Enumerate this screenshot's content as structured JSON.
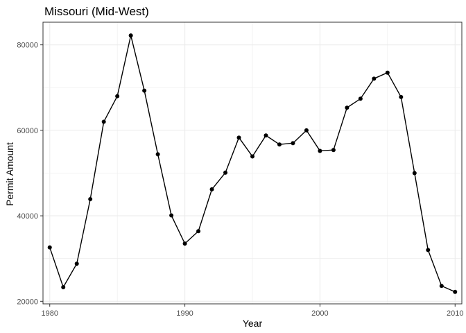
{
  "chart_data": {
    "type": "line",
    "title": "Missouri (Mid-West)",
    "xlabel": "Year",
    "ylabel": "Permit Amount",
    "xlim": [
      1979.5,
      2010.5
    ],
    "ylim": [
      19400,
      85300
    ],
    "x_ticks": [
      1980,
      1990,
      2000,
      2010
    ],
    "x_tick_labels": [
      "1980",
      "1990",
      "2000",
      "2010"
    ],
    "x_minor": [
      1985,
      1995,
      2005
    ],
    "y_ticks": [
      20000,
      40000,
      60000,
      80000
    ],
    "y_tick_labels": [
      "20000",
      "40000",
      "60000",
      "80000"
    ],
    "y_minor": [
      30000,
      50000,
      70000
    ],
    "grid": true,
    "legend": "none",
    "colors": {
      "line": "#000000",
      "point": "#000000",
      "grid": "#ebebeb",
      "panel_border": "#333333"
    },
    "series": [
      {
        "x": [
          1980,
          1981,
          1982,
          1983,
          1984,
          1985,
          1986,
          1987,
          1988,
          1989,
          1990,
          1991,
          1992,
          1993,
          1994,
          1995,
          1996,
          1997,
          1998,
          1999,
          2000,
          2001,
          2002,
          2003,
          2004,
          2005,
          2006,
          2007,
          2008,
          2009,
          2010
        ],
        "values": [
          32600,
          23300,
          28800,
          43900,
          62000,
          68000,
          82200,
          69300,
          54400,
          40100,
          33500,
          36400,
          46200,
          50100,
          58300,
          53900,
          58800,
          56700,
          57000,
          60000,
          55200,
          55400,
          65300,
          67400,
          72100,
          73500,
          67800,
          50000,
          32000,
          23600,
          22200
        ]
      }
    ]
  }
}
